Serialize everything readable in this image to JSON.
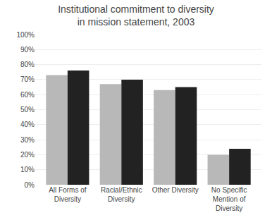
{
  "chart_data": {
    "type": "bar",
    "title": "Institutional commitment to diversity\nin mission statement, 2003",
    "categories": [
      "All Forms of\nDiversity",
      "Racial/Ethnic\nDiversity",
      "Other Diversity",
      "No Specific\nMention of\nDiversity"
    ],
    "series": [
      {
        "color": "#b8b8b8",
        "values": [
          73,
          67,
          63,
          20
        ]
      },
      {
        "color": "#222222",
        "values": [
          76,
          70,
          65,
          24
        ]
      }
    ],
    "ylim": [
      0,
      100
    ],
    "yticks": [
      {
        "value": 0,
        "label": "0%"
      },
      {
        "value": 10,
        "label": "10%"
      },
      {
        "value": 20,
        "label": "20%"
      },
      {
        "value": 30,
        "label": "30%"
      },
      {
        "value": 40,
        "label": "40%"
      },
      {
        "value": 50,
        "label": "50%"
      },
      {
        "value": 60,
        "label": "60%"
      },
      {
        "value": 70,
        "label": "70%"
      },
      {
        "value": 80,
        "label": "80%"
      },
      {
        "value": 90,
        "label": "90%"
      },
      {
        "value": 100,
        "label": "100%"
      }
    ],
    "grid": true
  }
}
